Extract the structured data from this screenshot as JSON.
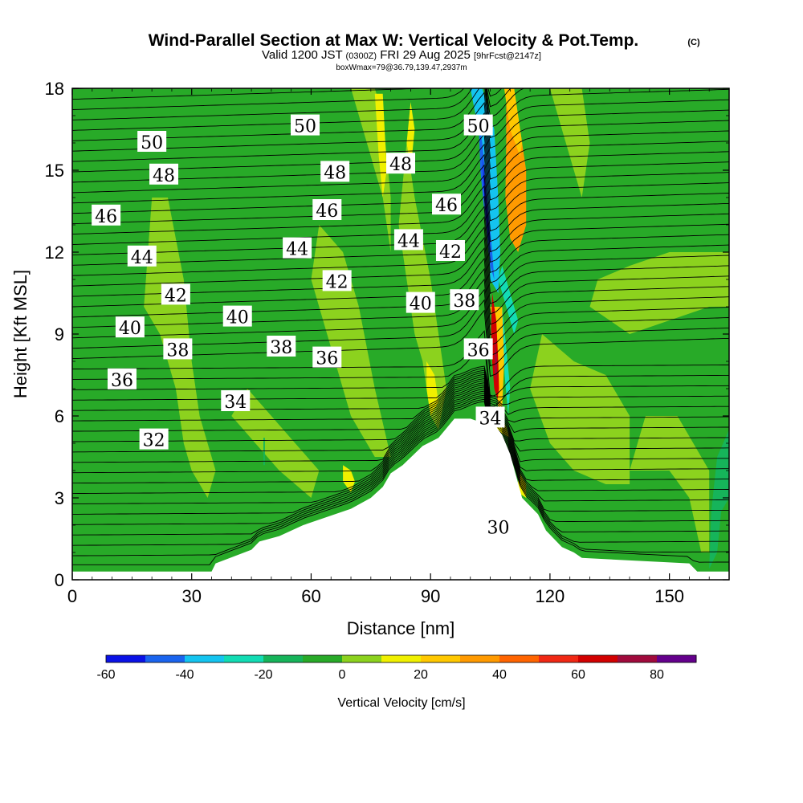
{
  "chart_data": {
    "type": "contour",
    "title": "Wind-Parallel Section at Max W: Vertical Velocity & Pot.Temp.",
    "title_mark": "(C)",
    "subtitle": {
      "prefix": "Valid 1200 JST",
      "utc": "(0300Z)",
      "date": "FRI 29 Aug 2025",
      "fcst": "[9hrFcst@2147z]"
    },
    "box_info": "boxWmax=79@36.79,139.47,2937m",
    "xlabel": "Distance [nm]",
    "ylabel": "Height [Kft MSL]",
    "xlim": [
      0,
      165
    ],
    "ylim": [
      0,
      18
    ],
    "xticks": [
      0,
      30,
      60,
      90,
      120,
      150
    ],
    "yticks": [
      0,
      3,
      6,
      9,
      12,
      15,
      18
    ],
    "colorbar": {
      "label": "Vertical Velocity [cm/s]",
      "ticks": [
        -60,
        -40,
        -20,
        0,
        20,
        40,
        60,
        80
      ],
      "levels": [
        -60,
        -50,
        -40,
        -30,
        -20,
        -10,
        0,
        10,
        20,
        30,
        40,
        50,
        60,
        70,
        80,
        90
      ],
      "colors": [
        "#0a12e6",
        "#1a64ee",
        "#14c4f0",
        "#12dcb4",
        "#16b45a",
        "#28aa28",
        "#8cd21e",
        "#f0f000",
        "#ffc800",
        "#ff9a00",
        "#ff6400",
        "#f02814",
        "#d20000",
        "#a00a3c",
        "#64008c"
      ]
    },
    "terrain_profile": {
      "x": [
        0,
        35,
        36,
        45,
        47,
        52,
        58,
        70,
        75,
        78,
        80,
        83,
        88,
        92,
        96,
        100,
        104,
        106,
        108,
        110,
        113,
        117,
        119,
        123,
        126,
        128,
        155,
        157,
        165
      ],
      "z": [
        0.3,
        0.3,
        0.6,
        1.1,
        1.4,
        1.6,
        2.0,
        2.6,
        3.0,
        3.4,
        3.9,
        4.2,
        4.9,
        5.2,
        5.9,
        5.9,
        5.7,
        5.7,
        5.3,
        4.6,
        3.0,
        2.4,
        1.8,
        1.2,
        1.0,
        0.8,
        0.6,
        0.3,
        0.3
      ]
    },
    "theta_labels": [
      {
        "value": "50",
        "x": 20,
        "y": 16.0
      },
      {
        "value": "48",
        "x": 23,
        "y": 14.8
      },
      {
        "value": "46",
        "x": 8.5,
        "y": 13.3
      },
      {
        "value": "44",
        "x": 17.5,
        "y": 11.8
      },
      {
        "value": "42",
        "x": 26,
        "y": 10.4
      },
      {
        "value": "40",
        "x": 14.5,
        "y": 9.2
      },
      {
        "value": "38",
        "x": 26.5,
        "y": 8.4
      },
      {
        "value": "36",
        "x": 12.5,
        "y": 7.3
      },
      {
        "value": "32",
        "x": 20.5,
        "y": 5.1
      },
      {
        "value": "50",
        "x": 58.5,
        "y": 16.6
      },
      {
        "value": "48",
        "x": 66,
        "y": 14.9
      },
      {
        "value": "46",
        "x": 64,
        "y": 13.5
      },
      {
        "value": "44",
        "x": 56.5,
        "y": 12.1
      },
      {
        "value": "40",
        "x": 41.5,
        "y": 9.6
      },
      {
        "value": "38",
        "x": 52.5,
        "y": 8.5
      },
      {
        "value": "34",
        "x": 41,
        "y": 6.5
      },
      {
        "value": "42",
        "x": 66.5,
        "y": 10.9
      },
      {
        "value": "36",
        "x": 64,
        "y": 8.1
      },
      {
        "value": "48",
        "x": 82.5,
        "y": 15.2
      },
      {
        "value": "44",
        "x": 84.5,
        "y": 12.4
      },
      {
        "value": "40",
        "x": 87.5,
        "y": 10.1
      },
      {
        "value": "42",
        "x": 95,
        "y": 12.0
      },
      {
        "value": "46",
        "x": 94,
        "y": 13.7
      },
      {
        "value": "50",
        "x": 102,
        "y": 16.6
      },
      {
        "value": "38",
        "x": 98.5,
        "y": 10.2
      },
      {
        "value": "36",
        "x": 102,
        "y": 8.4
      },
      {
        "value": "34",
        "x": 105,
        "y": 5.9
      },
      {
        "value": "30",
        "x": 107,
        "y": 1.9
      }
    ]
  }
}
